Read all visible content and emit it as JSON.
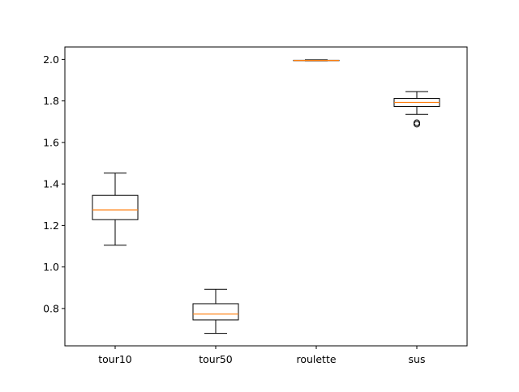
{
  "chart_data": {
    "type": "box",
    "title": "",
    "xlabel": "",
    "ylabel": "",
    "categories": [
      "tour10",
      "tour50",
      "roulette",
      "sus"
    ],
    "ylim": [
      0.62,
      2.06
    ],
    "yticks": [
      "0.8",
      "1.0",
      "1.2",
      "1.4",
      "1.6",
      "1.8",
      "2.0"
    ],
    "grid": false,
    "colors": {
      "box_edge": "#000000",
      "median": "#ff7f0e",
      "background": "#ffffff"
    },
    "series": [
      {
        "category": "tour10",
        "whisker_low": 1.105,
        "q1": 1.228,
        "median": 1.275,
        "q3": 1.345,
        "whisker_high": 1.452,
        "outliers": []
      },
      {
        "category": "tour50",
        "whisker_low": 0.68,
        "q1": 0.745,
        "median": 0.773,
        "q3": 0.823,
        "whisker_high": 0.892,
        "outliers": []
      },
      {
        "category": "roulette",
        "whisker_low": 1.993,
        "q1": 1.994,
        "median": 1.995,
        "q3": 1.996,
        "whisker_high": 1.998,
        "outliers": []
      },
      {
        "category": "sus",
        "whisker_low": 1.735,
        "q1": 1.773,
        "median": 1.793,
        "q3": 1.812,
        "whisker_high": 1.845,
        "outliers": [
          1.688,
          1.695
        ]
      }
    ]
  }
}
